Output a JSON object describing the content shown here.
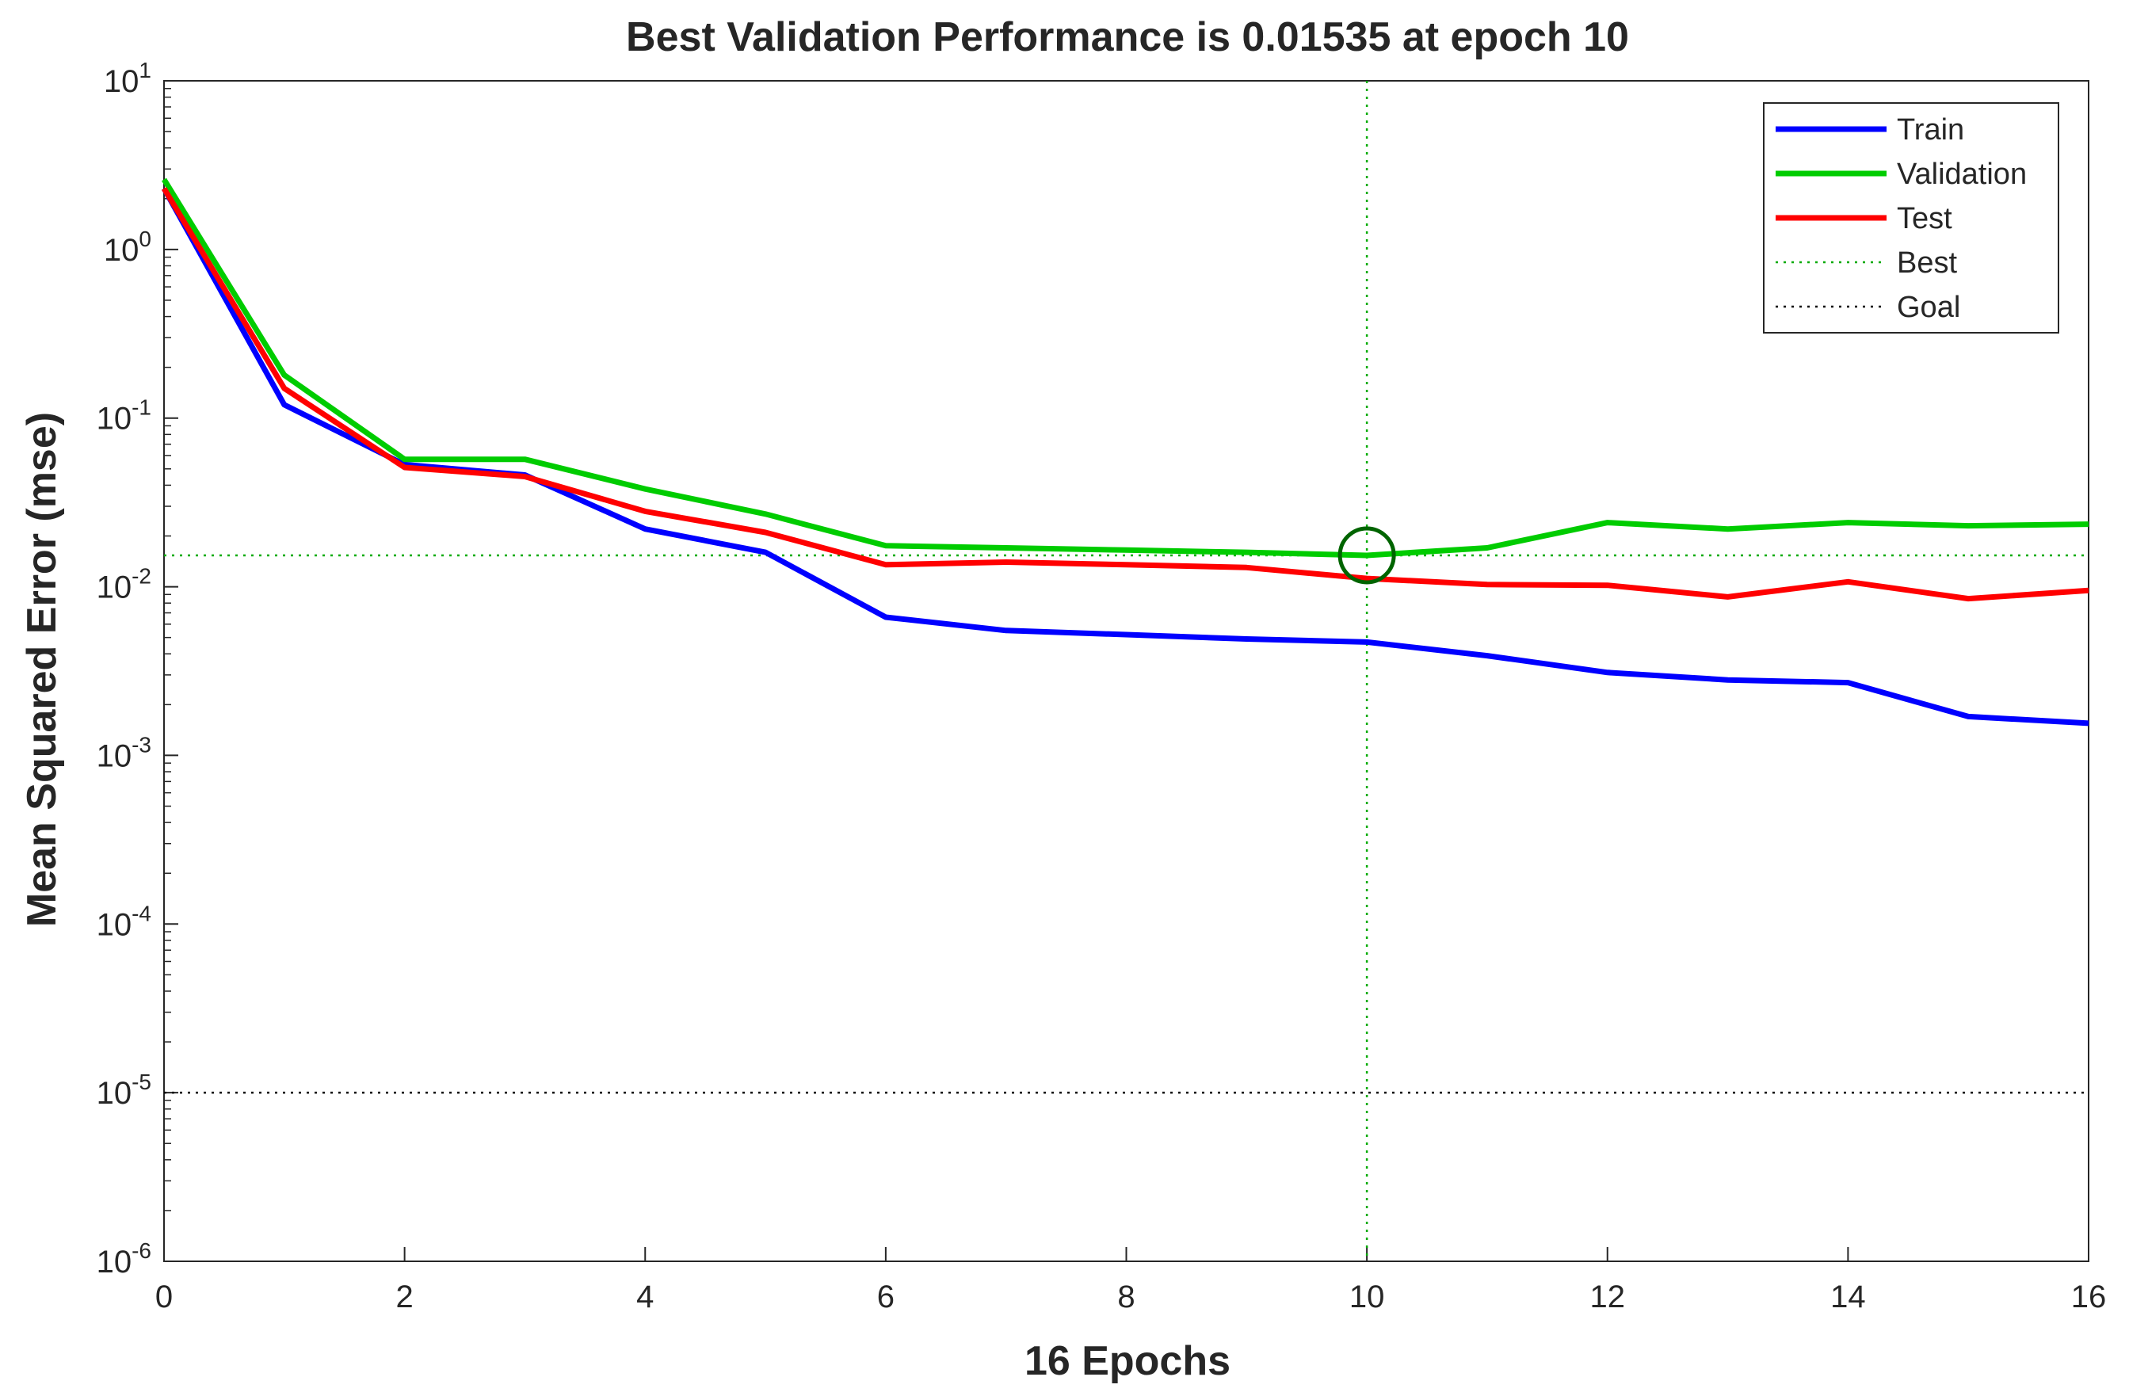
{
  "chart_data": {
    "type": "line",
    "title": "Best Validation Performance is  0.01535 at epoch 10",
    "xlabel": "16 Epochs",
    "ylabel": "Mean Squared Error  (mse)",
    "yscale": "log",
    "xlim": [
      0,
      16
    ],
    "ylim_exponents": [
      -6,
      1
    ],
    "x_ticks": [
      {
        "value": 0,
        "label": "0"
      },
      {
        "value": 2,
        "label": "2"
      },
      {
        "value": 4,
        "label": "4"
      },
      {
        "value": 6,
        "label": "6"
      },
      {
        "value": 8,
        "label": "8"
      },
      {
        "value": 10,
        "label": "10"
      },
      {
        "value": 12,
        "label": "12"
      },
      {
        "value": 14,
        "label": "14"
      },
      {
        "value": 16,
        "label": "16"
      }
    ],
    "y_ticks": [
      {
        "exponent": 1,
        "base": "10",
        "exp_label": "1"
      },
      {
        "exponent": 0,
        "base": "10",
        "exp_label": "0"
      },
      {
        "exponent": -1,
        "base": "10",
        "exp_label": "-1"
      },
      {
        "exponent": -2,
        "base": "10",
        "exp_label": "-2"
      },
      {
        "exponent": -3,
        "base": "10",
        "exp_label": "-3"
      },
      {
        "exponent": -4,
        "base": "10",
        "exp_label": "-4"
      },
      {
        "exponent": -5,
        "base": "10",
        "exp_label": "-5"
      },
      {
        "exponent": -6,
        "base": "10",
        "exp_label": "-6"
      }
    ],
    "x": [
      0,
      1,
      2,
      3,
      4,
      5,
      6,
      7,
      8,
      9,
      10,
      11,
      12,
      13,
      14,
      15,
      16
    ],
    "series": [
      {
        "name": "Train",
        "color": "#0000ff",
        "values": [
          2.3,
          0.12,
          0.053,
          0.046,
          0.022,
          0.016,
          0.0066,
          0.0055,
          0.0052,
          0.0049,
          0.0047,
          0.0039,
          0.0031,
          0.0028,
          0.0027,
          0.0017,
          0.00155
        ]
      },
      {
        "name": "Validation",
        "color": "#00cc00",
        "values": [
          2.6,
          0.18,
          0.057,
          0.057,
          0.038,
          0.027,
          0.0175,
          0.017,
          0.0165,
          0.016,
          0.01535,
          0.017,
          0.024,
          0.022,
          0.024,
          0.023,
          0.0235
        ]
      },
      {
        "name": "Test",
        "color": "#ff0000",
        "values": [
          2.3,
          0.15,
          0.051,
          0.045,
          0.028,
          0.021,
          0.0135,
          0.014,
          0.0135,
          0.013,
          0.0112,
          0.0103,
          0.0102,
          0.0087,
          0.0107,
          0.0085,
          0.0095
        ]
      }
    ],
    "best": {
      "epoch": 10,
      "value": 0.01535,
      "name": "Best",
      "color": "#00aa00"
    },
    "goal": {
      "value": 1e-05,
      "name": "Goal",
      "color": "#000000"
    },
    "legend": {
      "placement": "top-right",
      "items": [
        {
          "label": "Train",
          "style": "solid",
          "color": "#0000ff"
        },
        {
          "label": "Validation",
          "style": "solid",
          "color": "#00cc00"
        },
        {
          "label": "Test",
          "style": "solid",
          "color": "#ff0000"
        },
        {
          "label": "Best",
          "style": "dotted",
          "color": "#00aa00"
        },
        {
          "label": "Goal",
          "style": "dotted",
          "color": "#000000"
        }
      ]
    }
  }
}
